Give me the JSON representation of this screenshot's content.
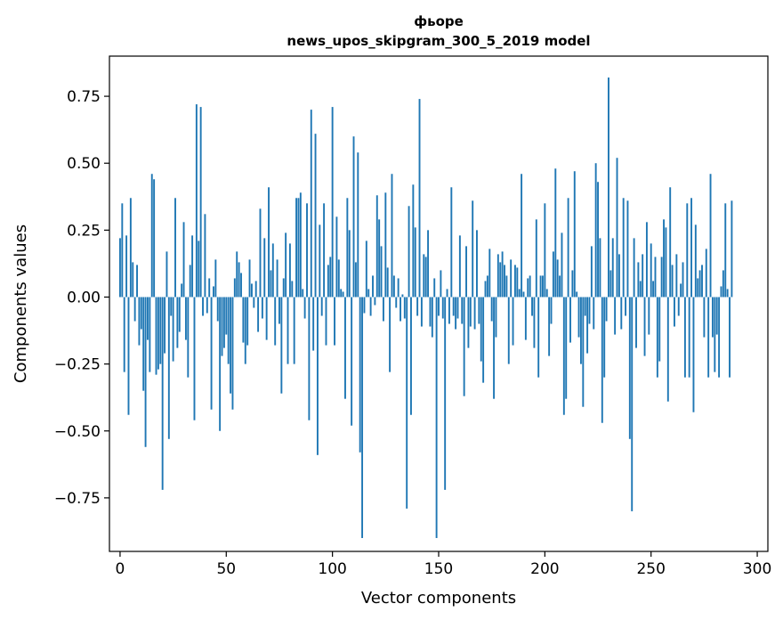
{
  "chart_data": {
    "type": "bar",
    "title": "фьоре",
    "subtitle": "news_upos_skipgram_300_5_2019 model",
    "xlabel": "Vector components",
    "ylabel": "Components values",
    "xlim": [
      -5,
      305
    ],
    "ylim": [
      -0.95,
      0.9
    ],
    "x_ticks": [
      0,
      50,
      100,
      150,
      200,
      250,
      300
    ],
    "x_tick_labels": [
      "0",
      "50",
      "100",
      "150",
      "200",
      "250",
      "300"
    ],
    "y_ticks": [
      -0.75,
      -0.5,
      -0.25,
      0.0,
      0.25,
      0.5,
      0.75
    ],
    "y_tick_labels": [
      "−0.75",
      "−0.50",
      "−0.25",
      "0.00",
      "0.25",
      "0.50",
      "0.75"
    ],
    "bar_color": "#1f77b4",
    "values": [
      0.22,
      0.35,
      -0.28,
      0.23,
      -0.44,
      0.37,
      0.13,
      -0.09,
      0.12,
      -0.18,
      -0.12,
      -0.35,
      -0.56,
      -0.16,
      -0.28,
      0.46,
      0.44,
      -0.29,
      -0.27,
      -0.25,
      -0.72,
      -0.21,
      0.17,
      -0.53,
      -0.07,
      -0.24,
      0.37,
      -0.19,
      -0.13,
      0.05,
      0.28,
      -0.16,
      -0.3,
      0.12,
      0.23,
      -0.46,
      0.72,
      0.21,
      0.71,
      -0.07,
      0.31,
      -0.06,
      0.07,
      -0.42,
      0.04,
      0.14,
      -0.09,
      -0.5,
      -0.22,
      -0.19,
      -0.14,
      -0.25,
      -0.36,
      -0.42,
      0.07,
      0.17,
      0.13,
      0.09,
      -0.17,
      -0.25,
      -0.18,
      0.14,
      0.05,
      -0.04,
      0.06,
      -0.13,
      0.33,
      -0.08,
      0.22,
      -0.16,
      0.41,
      0.1,
      0.2,
      -0.18,
      0.14,
      -0.1,
      -0.36,
      0.07,
      0.24,
      -0.25,
      0.2,
      0.06,
      -0.25,
      0.37,
      0.37,
      0.39,
      0.03,
      -0.08,
      0.35,
      -0.46,
      0.7,
      -0.2,
      0.61,
      -0.59,
      0.27,
      -0.07,
      0.35,
      -0.18,
      0.12,
      0.15,
      0.71,
      -0.18,
      0.3,
      0.14,
      0.03,
      0.02,
      -0.38,
      0.37,
      0.25,
      -0.48,
      0.6,
      0.13,
      0.54,
      -0.58,
      -0.9,
      -0.06,
      0.21,
      0.03,
      -0.07,
      0.08,
      -0.03,
      0.38,
      0.29,
      0.19,
      -0.09,
      0.39,
      0.11,
      -0.28,
      0.46,
      0.08,
      -0.04,
      0.07,
      -0.09,
      0.01,
      -0.08,
      -0.79,
      0.34,
      -0.44,
      0.42,
      0.26,
      -0.07,
      0.74,
      -0.11,
      0.16,
      0.15,
      0.25,
      -0.11,
      -0.15,
      0.07,
      -0.9,
      -0.07,
      0.1,
      -0.08,
      -0.72,
      0.03,
      -0.1,
      0.41,
      -0.07,
      -0.12,
      -0.08,
      0.23,
      -0.1,
      -0.37,
      0.19,
      -0.19,
      -0.11,
      0.36,
      -0.12,
      0.25,
      -0.1,
      -0.24,
      -0.32,
      0.06,
      0.08,
      0.18,
      -0.09,
      -0.38,
      -0.15,
      0.16,
      0.13,
      0.17,
      0.12,
      0.08,
      -0.25,
      0.14,
      -0.18,
      0.12,
      0.11,
      0.03,
      0.46,
      0.02,
      -0.16,
      0.07,
      0.08,
      -0.07,
      -0.19,
      0.29,
      -0.3,
      0.08,
      0.08,
      0.35,
      0.03,
      -0.22,
      -0.1,
      0.17,
      0.48,
      0.14,
      0.08,
      0.24,
      -0.44,
      -0.38,
      0.37,
      -0.17,
      0.1,
      0.47,
      0.02,
      -0.15,
      -0.25,
      -0.41,
      -0.07,
      -0.21,
      -0.1,
      0.19,
      -0.12,
      0.5,
      0.43,
      0.22,
      -0.47,
      -0.3,
      -0.09,
      0.82,
      0.1,
      0.22,
      -0.14,
      0.52,
      0.16,
      -0.12,
      0.37,
      -0.07,
      0.36,
      -0.53,
      -0.8,
      0.22,
      -0.19,
      0.13,
      0.06,
      0.16,
      -0.22,
      0.28,
      -0.14,
      0.2,
      0.06,
      0.15,
      -0.3,
      -0.24,
      0.15,
      0.29,
      0.26,
      -0.39,
      0.41,
      0.12,
      -0.11,
      0.16,
      -0.07,
      0.05,
      0.13,
      -0.3,
      0.35,
      -0.3,
      0.37,
      -0.43,
      0.27,
      0.07,
      0.1,
      0.12,
      -0.15,
      0.18,
      -0.3,
      0.46,
      -0.15,
      -0.28,
      -0.14,
      -0.3,
      0.04,
      0.1,
      0.35,
      0.03,
      -0.3,
      0.36
    ]
  }
}
